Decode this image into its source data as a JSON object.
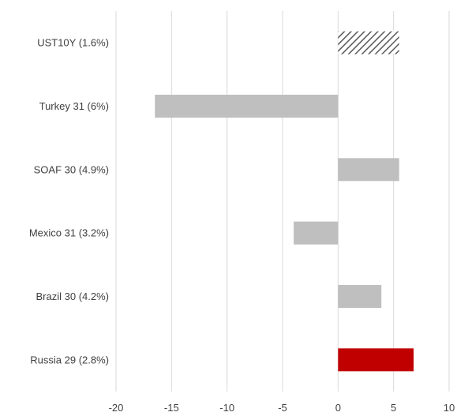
{
  "chart_data": {
    "type": "bar",
    "orientation": "horizontal",
    "title": "",
    "xlabel": "",
    "ylabel": "",
    "categories": [
      "UST10Y (1.6%)",
      "Turkey 31 (6%)",
      "SOAF 30 (4.9%)",
      "Mexico 31 (3.2%)",
      "Brazil 30 (4.2%)",
      "Russia 29 (2.8%)"
    ],
    "values": [
      5.5,
      -16.5,
      5.5,
      -4.0,
      3.9,
      6.8
    ],
    "bar_styles": [
      "hatched",
      "solid",
      "solid",
      "solid",
      "solid",
      "solid"
    ],
    "bar_colors": [
      "#595959",
      "#bfbfbf",
      "#bfbfbf",
      "#bfbfbf",
      "#bfbfbf",
      "#c00000"
    ],
    "xlim": [
      -20,
      10
    ],
    "xticks": [
      -20,
      -15,
      -10,
      -5,
      0,
      5,
      10
    ],
    "xtick_labels": [
      "-20",
      "-15",
      "-10",
      "-5",
      "0",
      "5",
      "10"
    ],
    "grid": "vertical",
    "legend": "none"
  },
  "colors": {
    "grid": "#d9d9d9",
    "text": "#404040",
    "bar_default": "#bfbfbf",
    "bar_highlight": "#c00000",
    "hatch": "#595959"
  }
}
